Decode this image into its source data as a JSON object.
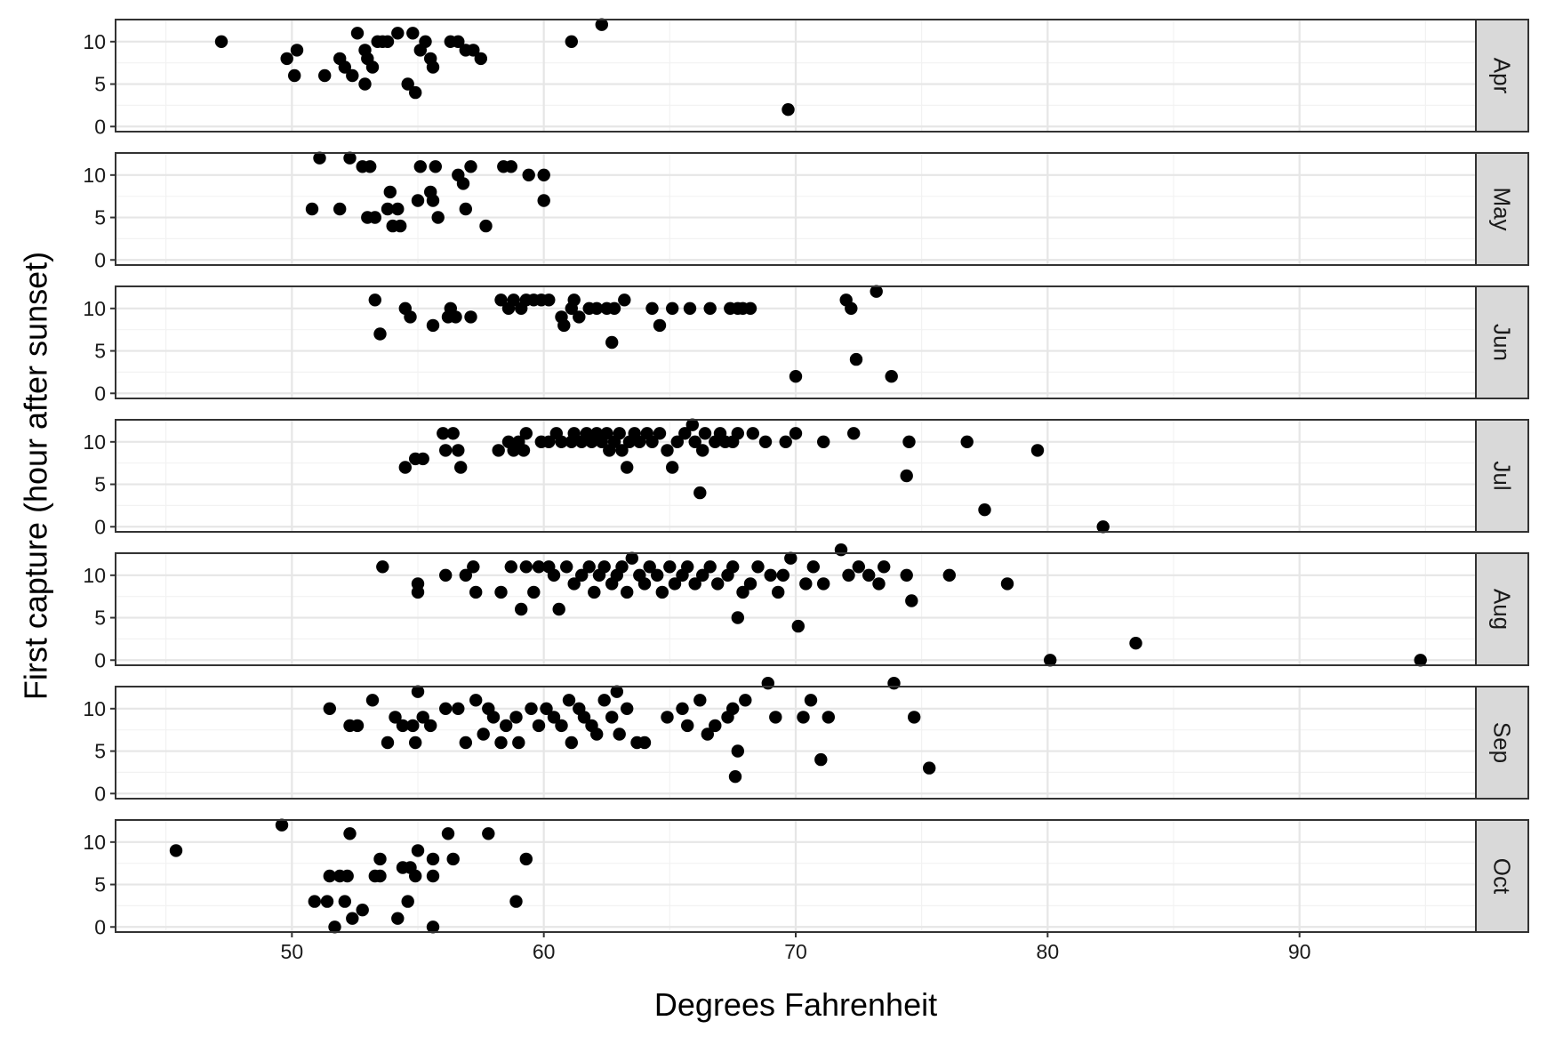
{
  "chart_data": {
    "type": "scatter",
    "facets": [
      "Apr",
      "May",
      "Jun",
      "Jul",
      "Aug",
      "Sep",
      "Oct"
    ],
    "xlabel": "Degrees Fahrenheit",
    "ylabel": "First capture (hour after sunset)",
    "xlim": [
      43,
      97
    ],
    "ylim": [
      -0.6,
      12.6
    ],
    "xticks": [
      50,
      60,
      70,
      80,
      90
    ],
    "yticks": [
      0,
      5,
      10
    ],
    "grid": true,
    "point_color": "#000000",
    "panels": [
      {
        "facet": "Apr",
        "points": [
          [
            47.2,
            10
          ],
          [
            49.8,
            8
          ],
          [
            50.1,
            6
          ],
          [
            50.2,
            9
          ],
          [
            51.3,
            6
          ],
          [
            51.9,
            8
          ],
          [
            52.1,
            7
          ],
          [
            52.4,
            6
          ],
          [
            52.6,
            11
          ],
          [
            52.9,
            5
          ],
          [
            52.9,
            9
          ],
          [
            53,
            8
          ],
          [
            53.2,
            7
          ],
          [
            53.4,
            10
          ],
          [
            53.6,
            10
          ],
          [
            53.8,
            10
          ],
          [
            54.2,
            11
          ],
          [
            54.6,
            5
          ],
          [
            54.8,
            11
          ],
          [
            54.9,
            4
          ],
          [
            55.1,
            9
          ],
          [
            55.3,
            10
          ],
          [
            55.5,
            8
          ],
          [
            55.6,
            7
          ],
          [
            56.3,
            10
          ],
          [
            56.6,
            10
          ],
          [
            56.9,
            9
          ],
          [
            57.2,
            9
          ],
          [
            57.5,
            8
          ],
          [
            61.1,
            10
          ],
          [
            62.3,
            12
          ],
          [
            69.7,
            2
          ]
        ]
      },
      {
        "facet": "May",
        "points": [
          [
            50.8,
            6
          ],
          [
            51.1,
            12
          ],
          [
            51.9,
            6
          ],
          [
            52.3,
            12
          ],
          [
            52.8,
            11
          ],
          [
            53,
            5
          ],
          [
            53.1,
            11
          ],
          [
            53.3,
            5
          ],
          [
            53.8,
            6
          ],
          [
            53.9,
            8
          ],
          [
            54,
            4
          ],
          [
            54.2,
            6
          ],
          [
            54.3,
            4
          ],
          [
            55,
            7
          ],
          [
            55.1,
            11
          ],
          [
            55.5,
            8
          ],
          [
            55.6,
            7
          ],
          [
            55.7,
            11
          ],
          [
            55.8,
            5
          ],
          [
            56.6,
            10
          ],
          [
            56.8,
            9
          ],
          [
            56.9,
            6
          ],
          [
            57.1,
            11
          ],
          [
            57.7,
            4
          ],
          [
            58.4,
            11
          ],
          [
            58.7,
            11
          ],
          [
            59.4,
            10
          ],
          [
            60,
            10
          ],
          [
            60,
            7
          ]
        ]
      },
      {
        "facet": "Jun",
        "points": [
          [
            53.3,
            11
          ],
          [
            53.5,
            7
          ],
          [
            54.5,
            10
          ],
          [
            54.7,
            9
          ],
          [
            55.6,
            8
          ],
          [
            56.2,
            9
          ],
          [
            56.3,
            10
          ],
          [
            56.5,
            9
          ],
          [
            57.1,
            9
          ],
          [
            58.3,
            11
          ],
          [
            58.6,
            10
          ],
          [
            58.8,
            11
          ],
          [
            59.1,
            10
          ],
          [
            59.3,
            11
          ],
          [
            59.6,
            11
          ],
          [
            59.9,
            11
          ],
          [
            60.2,
            11
          ],
          [
            60.7,
            9
          ],
          [
            60.8,
            8
          ],
          [
            61.1,
            10
          ],
          [
            61.2,
            11
          ],
          [
            61.4,
            9
          ],
          [
            61.8,
            10
          ],
          [
            62.1,
            10
          ],
          [
            62.5,
            10
          ],
          [
            62.7,
            6
          ],
          [
            62.8,
            10
          ],
          [
            63.2,
            11
          ],
          [
            64.3,
            10
          ],
          [
            64.6,
            8
          ],
          [
            65.1,
            10
          ],
          [
            65.8,
            10
          ],
          [
            66.6,
            10
          ],
          [
            67.4,
            10
          ],
          [
            67.7,
            10
          ],
          [
            67.9,
            10
          ],
          [
            68.2,
            10
          ],
          [
            70,
            2
          ],
          [
            72,
            11
          ],
          [
            72.2,
            10
          ],
          [
            72.4,
            4
          ],
          [
            73.2,
            12
          ],
          [
            73.8,
            2
          ]
        ]
      },
      {
        "facet": "Jul",
        "points": [
          [
            54.5,
            7
          ],
          [
            54.9,
            8
          ],
          [
            55.2,
            8
          ],
          [
            56,
            11
          ],
          [
            56.1,
            9
          ],
          [
            56.4,
            11
          ],
          [
            56.6,
            9
          ],
          [
            56.7,
            7
          ],
          [
            58.2,
            9
          ],
          [
            58.6,
            10
          ],
          [
            58.8,
            9
          ],
          [
            59,
            10
          ],
          [
            59.2,
            9
          ],
          [
            59.3,
            11
          ],
          [
            59.9,
            10
          ],
          [
            60.2,
            10
          ],
          [
            60.5,
            11
          ],
          [
            60.7,
            10
          ],
          [
            61.1,
            10
          ],
          [
            61.2,
            11
          ],
          [
            61.5,
            10
          ],
          [
            61.7,
            11
          ],
          [
            61.9,
            10
          ],
          [
            62.1,
            11
          ],
          [
            62.3,
            10
          ],
          [
            62.5,
            11
          ],
          [
            62.6,
            9
          ],
          [
            62.8,
            10
          ],
          [
            63,
            11
          ],
          [
            63.1,
            9
          ],
          [
            63.3,
            7
          ],
          [
            63.4,
            10
          ],
          [
            63.6,
            11
          ],
          [
            63.8,
            10
          ],
          [
            64.1,
            11
          ],
          [
            64.3,
            10
          ],
          [
            64.6,
            11
          ],
          [
            64.9,
            9
          ],
          [
            65.1,
            7
          ],
          [
            65.3,
            10
          ],
          [
            65.6,
            11
          ],
          [
            65.9,
            12
          ],
          [
            66,
            10
          ],
          [
            66.2,
            4
          ],
          [
            66.3,
            9
          ],
          [
            66.4,
            11
          ],
          [
            66.8,
            10
          ],
          [
            67,
            11
          ],
          [
            67.2,
            10
          ],
          [
            67.5,
            10
          ],
          [
            67.7,
            11
          ],
          [
            68.3,
            11
          ],
          [
            68.8,
            10
          ],
          [
            69.6,
            10
          ],
          [
            70,
            11
          ],
          [
            71.1,
            10
          ],
          [
            72.3,
            11
          ],
          [
            74.4,
            6
          ],
          [
            74.5,
            10
          ],
          [
            76.8,
            10
          ],
          [
            77.5,
            2
          ],
          [
            79.6,
            9
          ],
          [
            82.2,
            0
          ]
        ]
      },
      {
        "facet": "Aug",
        "points": [
          [
            53.6,
            11
          ],
          [
            55,
            8
          ],
          [
            55,
            9
          ],
          [
            56.1,
            10
          ],
          [
            56.9,
            10
          ],
          [
            57.2,
            11
          ],
          [
            57.3,
            8
          ],
          [
            58.3,
            8
          ],
          [
            58.7,
            11
          ],
          [
            59.1,
            6
          ],
          [
            59.3,
            11
          ],
          [
            59.6,
            8
          ],
          [
            59.8,
            11
          ],
          [
            60.2,
            11
          ],
          [
            60.4,
            10
          ],
          [
            60.6,
            6
          ],
          [
            60.9,
            11
          ],
          [
            61.2,
            9
          ],
          [
            61.5,
            10
          ],
          [
            61.8,
            11
          ],
          [
            62,
            8
          ],
          [
            62.2,
            10
          ],
          [
            62.4,
            11
          ],
          [
            62.7,
            9
          ],
          [
            62.9,
            10
          ],
          [
            63.1,
            11
          ],
          [
            63.3,
            8
          ],
          [
            63.5,
            12
          ],
          [
            63.8,
            10
          ],
          [
            64,
            9
          ],
          [
            64.2,
            11
          ],
          [
            64.5,
            10
          ],
          [
            64.7,
            8
          ],
          [
            65,
            11
          ],
          [
            65.2,
            9
          ],
          [
            65.5,
            10
          ],
          [
            65.7,
            11
          ],
          [
            66,
            9
          ],
          [
            66.3,
            10
          ],
          [
            66.6,
            11
          ],
          [
            66.9,
            9
          ],
          [
            67.3,
            10
          ],
          [
            67.5,
            11
          ],
          [
            67.7,
            5
          ],
          [
            67.9,
            8
          ],
          [
            68.2,
            9
          ],
          [
            68.5,
            11
          ],
          [
            69,
            10
          ],
          [
            69.3,
            8
          ],
          [
            69.5,
            10
          ],
          [
            69.8,
            12
          ],
          [
            70.1,
            4
          ],
          [
            70.4,
            9
          ],
          [
            70.7,
            11
          ],
          [
            71.1,
            9
          ],
          [
            71.8,
            13
          ],
          [
            72.1,
            10
          ],
          [
            72.5,
            11
          ],
          [
            72.9,
            10
          ],
          [
            73.3,
            9
          ],
          [
            73.5,
            11
          ],
          [
            74.4,
            10
          ],
          [
            74.6,
            7
          ],
          [
            76.1,
            10
          ],
          [
            78.4,
            9
          ],
          [
            80.1,
            0
          ],
          [
            83.5,
            2
          ],
          [
            94.8,
            0
          ]
        ]
      },
      {
        "facet": "Sep",
        "points": [
          [
            51.5,
            10
          ],
          [
            52.3,
            8
          ],
          [
            52.6,
            8
          ],
          [
            53.2,
            11
          ],
          [
            53.8,
            6
          ],
          [
            54.1,
            9
          ],
          [
            54.4,
            8
          ],
          [
            54.8,
            8
          ],
          [
            54.9,
            6
          ],
          [
            55,
            12
          ],
          [
            55.2,
            9
          ],
          [
            55.5,
            8
          ],
          [
            56.1,
            10
          ],
          [
            56.6,
            10
          ],
          [
            56.9,
            6
          ],
          [
            57.3,
            11
          ],
          [
            57.6,
            7
          ],
          [
            57.8,
            10
          ],
          [
            58,
            9
          ],
          [
            58.3,
            6
          ],
          [
            58.5,
            8
          ],
          [
            58.9,
            9
          ],
          [
            59,
            6
          ],
          [
            59.5,
            10
          ],
          [
            59.8,
            8
          ],
          [
            60.1,
            10
          ],
          [
            60.4,
            9
          ],
          [
            60.7,
            8
          ],
          [
            61,
            11
          ],
          [
            61.1,
            6
          ],
          [
            61.4,
            10
          ],
          [
            61.6,
            9
          ],
          [
            61.9,
            8
          ],
          [
            62.1,
            7
          ],
          [
            62.4,
            11
          ],
          [
            62.7,
            9
          ],
          [
            62.9,
            12
          ],
          [
            63,
            7
          ],
          [
            63.3,
            10
          ],
          [
            63.7,
            6
          ],
          [
            64,
            6
          ],
          [
            64.9,
            9
          ],
          [
            65.5,
            10
          ],
          [
            65.7,
            8
          ],
          [
            66.2,
            11
          ],
          [
            66.5,
            7
          ],
          [
            66.8,
            8
          ],
          [
            67.3,
            9
          ],
          [
            67.5,
            10
          ],
          [
            67.6,
            2
          ],
          [
            67.7,
            5
          ],
          [
            68,
            11
          ],
          [
            68.9,
            13
          ],
          [
            69.2,
            9
          ],
          [
            70.3,
            9
          ],
          [
            70.6,
            11
          ],
          [
            71,
            4
          ],
          [
            71.3,
            9
          ],
          [
            73.9,
            13
          ],
          [
            74.7,
            9
          ],
          [
            75.3,
            3
          ]
        ]
      },
      {
        "facet": "Oct",
        "points": [
          [
            45.4,
            9
          ],
          [
            49.6,
            12
          ],
          [
            50.9,
            3
          ],
          [
            51.4,
            3
          ],
          [
            51.5,
            6
          ],
          [
            51.7,
            0
          ],
          [
            51.9,
            6
          ],
          [
            52.1,
            3
          ],
          [
            52.2,
            6
          ],
          [
            52.3,
            11
          ],
          [
            52.4,
            1
          ],
          [
            52.8,
            2
          ],
          [
            53.3,
            6
          ],
          [
            53.5,
            8
          ],
          [
            53.5,
            6
          ],
          [
            54.2,
            1
          ],
          [
            54.4,
            7
          ],
          [
            54.6,
            3
          ],
          [
            54.7,
            7
          ],
          [
            54.9,
            6
          ],
          [
            55,
            9
          ],
          [
            55.6,
            8
          ],
          [
            55.6,
            0
          ],
          [
            55.6,
            6
          ],
          [
            56.2,
            11
          ],
          [
            56.4,
            8
          ],
          [
            57.8,
            11
          ],
          [
            58.9,
            3
          ],
          [
            59.3,
            8
          ]
        ]
      }
    ]
  }
}
